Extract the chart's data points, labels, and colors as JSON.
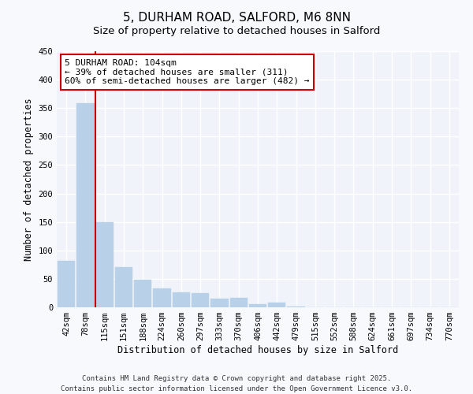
{
  "title": "5, DURHAM ROAD, SALFORD, M6 8NN",
  "subtitle": "Size of property relative to detached houses in Salford",
  "xlabel": "Distribution of detached houses by size in Salford",
  "ylabel": "Number of detached properties",
  "bar_labels": [
    "42sqm",
    "78sqm",
    "115sqm",
    "151sqm",
    "188sqm",
    "224sqm",
    "260sqm",
    "297sqm",
    "333sqm",
    "370sqm",
    "406sqm",
    "442sqm",
    "479sqm",
    "515sqm",
    "552sqm",
    "588sqm",
    "624sqm",
    "661sqm",
    "697sqm",
    "734sqm",
    "770sqm"
  ],
  "bar_values": [
    82,
    358,
    150,
    71,
    49,
    33,
    26,
    25,
    15,
    17,
    5,
    8,
    1,
    0,
    0,
    0,
    0,
    0,
    0,
    0,
    0
  ],
  "bar_color": "#b8d0e8",
  "bar_edgecolor": "#b8d0e8",
  "vline_x_idx": 1,
  "vline_color": "#cc0000",
  "annotation_title": "5 DURHAM ROAD: 104sqm",
  "annotation_line1": "← 39% of detached houses are smaller (311)",
  "annotation_line2": "60% of semi-detached houses are larger (482) →",
  "annotation_box_edgecolor": "#cc0000",
  "annotation_box_facecolor": "#ffffff",
  "ylim": [
    0,
    450
  ],
  "yticks": [
    0,
    50,
    100,
    150,
    200,
    250,
    300,
    350,
    400,
    450
  ],
  "bg_color": "#f8f9fc",
  "plot_bg_color": "#f0f4fa",
  "grid_color": "#ffffff",
  "footer_line1": "Contains HM Land Registry data © Crown copyright and database right 2025.",
  "footer_line2": "Contains public sector information licensed under the Open Government Licence v3.0.",
  "title_fontsize": 11,
  "subtitle_fontsize": 9.5,
  "axis_label_fontsize": 8.5,
  "tick_fontsize": 7.5,
  "annotation_fontsize": 8,
  "footer_fontsize": 6.5
}
